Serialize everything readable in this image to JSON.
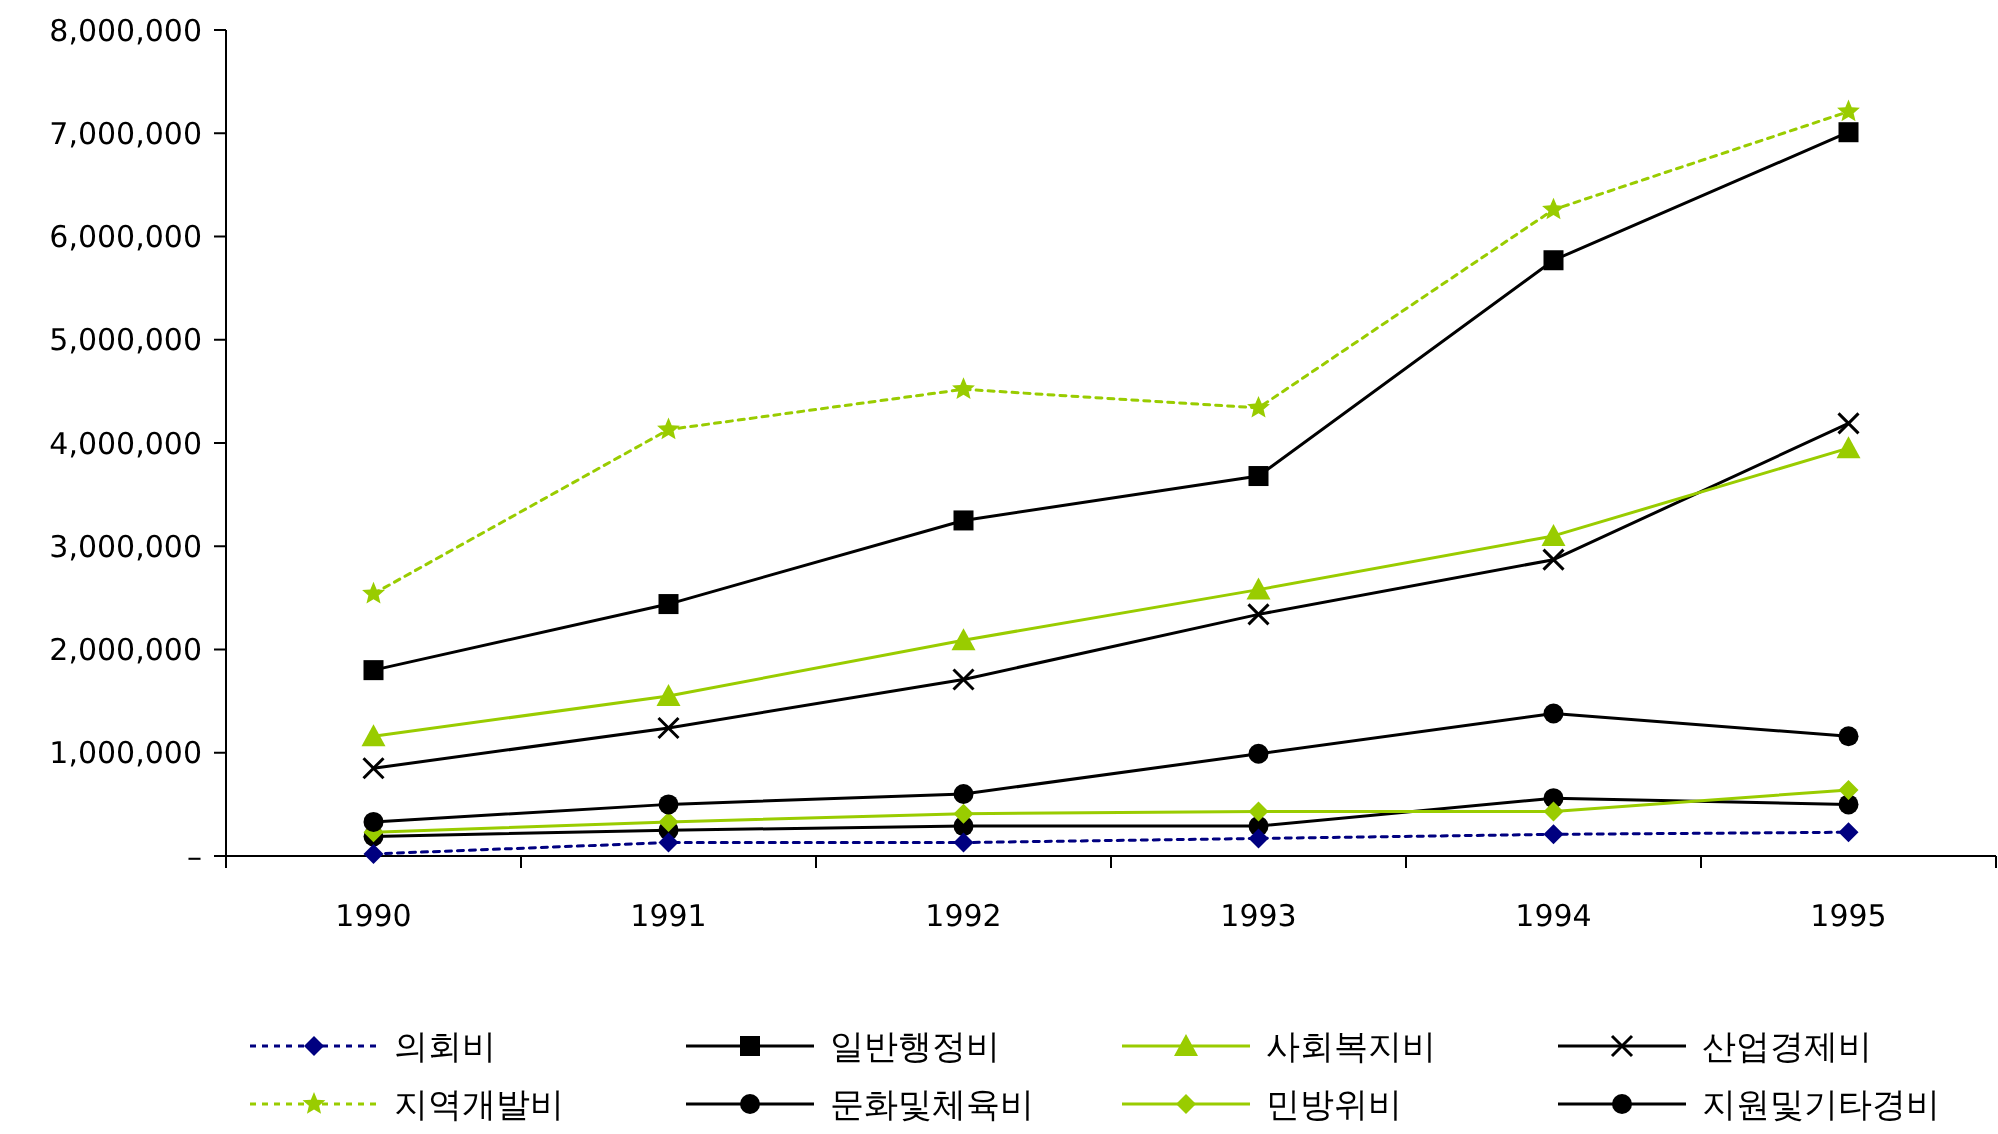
{
  "chart_data": {
    "type": "line",
    "categories": [
      "1990",
      "1991",
      "1992",
      "1993",
      "1994",
      "1995"
    ],
    "ylim": [
      0,
      8000000
    ],
    "yticks": [
      {
        "value": 0,
        "label": "–"
      },
      {
        "value": 1000000,
        "label": "1,000,000"
      },
      {
        "value": 2000000,
        "label": "2,000,000"
      },
      {
        "value": 3000000,
        "label": "3,000,000"
      },
      {
        "value": 4000000,
        "label": "4,000,000"
      },
      {
        "value": 5000000,
        "label": "5,000,000"
      },
      {
        "value": 6000000,
        "label": "6,000,000"
      },
      {
        "value": 7000000,
        "label": "7,000,000"
      },
      {
        "value": 8000000,
        "label": "8,000,000"
      }
    ],
    "grid": false,
    "legend": "bottom",
    "series": [
      {
        "name": "의회비",
        "color": "#000080",
        "marker": "diamond",
        "line_style": "dotted",
        "values": [
          20000,
          130000,
          130000,
          170000,
          210000,
          230000
        ]
      },
      {
        "name": "일반행정비",
        "color": "#000000",
        "marker": "square",
        "line_style": "solid",
        "values": [
          1800000,
          2440000,
          3250000,
          3680000,
          5770000,
          7010000
        ]
      },
      {
        "name": "사회복지비",
        "color": "#99cc00",
        "marker": "triangle",
        "line_style": "solid",
        "values": [
          1160000,
          1550000,
          2090000,
          2580000,
          3100000,
          3950000
        ]
      },
      {
        "name": "산업경제비",
        "color": "#000000",
        "marker": "cross",
        "line_style": "solid",
        "values": [
          850000,
          1240000,
          1710000,
          2340000,
          2870000,
          4190000
        ]
      },
      {
        "name": "지역개발비",
        "color": "#99cc00",
        "marker": "star",
        "line_style": "dotted",
        "values": [
          2540000,
          4130000,
          4520000,
          4340000,
          6260000,
          7210000
        ]
      },
      {
        "name": "문화및체육비",
        "color": "#000000",
        "marker": "circle",
        "line_style": "solid",
        "values": [
          330000,
          500000,
          600000,
          990000,
          1380000,
          1160000
        ]
      },
      {
        "name": "민방위비",
        "color": "#99cc00",
        "marker": "diamond",
        "line_style": "solid",
        "values": [
          230000,
          330000,
          410000,
          430000,
          430000,
          640000
        ]
      },
      {
        "name": "지원및기타경비",
        "color": "#000000",
        "marker": "circle",
        "line_style": "solid",
        "values": [
          190000,
          250000,
          290000,
          290000,
          560000,
          500000
        ]
      }
    ]
  }
}
